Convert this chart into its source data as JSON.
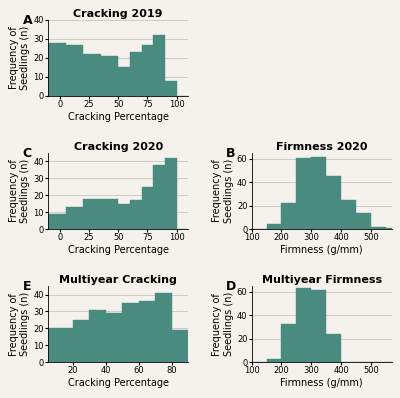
{
  "bar_color": "#4a8b7f",
  "panels": {
    "A": {
      "title": "Cracking 2019",
      "xlabel": "Cracking Percentage",
      "ylabel": "Frequency of\nSeedlings (n)",
      "ylim": [
        0,
        40
      ],
      "yticks": [
        0,
        10,
        20,
        30,
        40
      ],
      "xlim": [
        -10,
        110
      ],
      "xticks": [
        0,
        25,
        50,
        75,
        100
      ],
      "bars": {
        "edges": [
          -10,
          5,
          20,
          35,
          50,
          60,
          70,
          80,
          90,
          100,
          110
        ],
        "heights": [
          28,
          27,
          22,
          21,
          15,
          23,
          27,
          32,
          8,
          0
        ]
      }
    },
    "C": {
      "title": "Cracking 2020",
      "xlabel": "Cracking Percentage",
      "ylabel": "Frequency of\nSeedlings (n)",
      "ylim": [
        0,
        45
      ],
      "yticks": [
        0,
        10,
        20,
        30,
        40
      ],
      "xlim": [
        -10,
        110
      ],
      "xticks": [
        0,
        25,
        50,
        75,
        100
      ],
      "bars": {
        "edges": [
          -10,
          5,
          20,
          35,
          50,
          60,
          70,
          80,
          90,
          100,
          110
        ],
        "heights": [
          9,
          13,
          18,
          18,
          15,
          17,
          25,
          38,
          42,
          0
        ]
      }
    },
    "B": {
      "title": "Firmness 2020",
      "xlabel": "Firmness (g/mm)",
      "ylabel": "Frequency of\nSeedlings (n)",
      "ylim": [
        0,
        65
      ],
      "yticks": [
        0,
        20,
        40,
        60
      ],
      "xlim": [
        100,
        570
      ],
      "xticks": [
        100,
        200,
        300,
        400,
        500
      ],
      "bars": {
        "edges": [
          100,
          150,
          200,
          250,
          300,
          350,
          400,
          450,
          500,
          550,
          570
        ],
        "heights": [
          0,
          4,
          22,
          61,
          62,
          45,
          25,
          14,
          2,
          1
        ]
      }
    },
    "E": {
      "title": "Multiyear Cracking",
      "xlabel": "Cracking Percentage",
      "ylabel": "Frequency of\nSeedlings (n)",
      "ylim": [
        0,
        45
      ],
      "yticks": [
        0,
        10,
        20,
        30,
        40
      ],
      "xlim": [
        5,
        90
      ],
      "xticks": [
        20,
        40,
        60,
        80
      ],
      "bars": {
        "edges": [
          5,
          20,
          30,
          40,
          50,
          60,
          70,
          80,
          90
        ],
        "heights": [
          20,
          25,
          31,
          29,
          35,
          36,
          41,
          19
        ]
      }
    },
    "D": {
      "title": "Multiyear Firmness",
      "xlabel": "Firmness (g/mm)",
      "ylabel": "Frequency of\nSeedlings (n)",
      "ylim": [
        0,
        65
      ],
      "yticks": [
        0,
        20,
        40,
        60
      ],
      "xlim": [
        100,
        570
      ],
      "xticks": [
        100,
        200,
        300,
        400,
        500
      ],
      "bars": {
        "edges": [
          100,
          150,
          200,
          250,
          300,
          350,
          400,
          450,
          500,
          550,
          570
        ],
        "heights": [
          0,
          3,
          33,
          63,
          62,
          24,
          0,
          0,
          0,
          0
        ]
      }
    }
  },
  "background_color": "#f5f2ed",
  "label_fontsize": 7,
  "title_fontsize": 8,
  "tick_fontsize": 6,
  "panel_label_fontsize": 9
}
